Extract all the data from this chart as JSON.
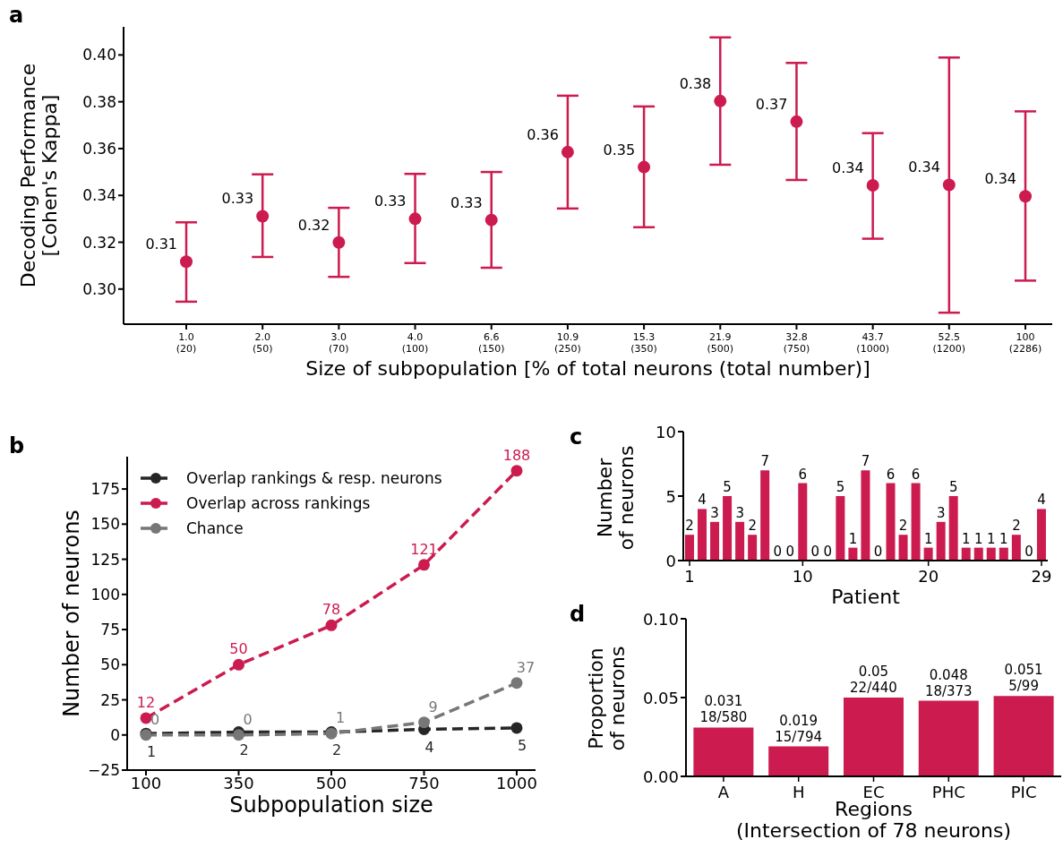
{
  "chart_data": [
    {
      "type": "scatter",
      "title": "a",
      "xlabel": "Size of subpopulation [% of total neurons (total number)]",
      "ylabel": "Decoding Performance\n[Cohen's Kappa]",
      "marker": "circle",
      "color": "#cb1b4f",
      "categories": [
        "1.0\n(20)",
        "2.0\n(50)",
        "3.0\n(70)",
        "4.0\n(100)",
        "6.6\n(150)",
        "10.9\n(250)",
        "15.3\n(350)",
        "21.9\n(500)",
        "32.8\n(750)",
        "43.7\n(1000)",
        "52.5\n(1200)",
        "100\n(2286)"
      ],
      "values": [
        0.3117,
        0.3311,
        0.3199,
        0.33,
        0.3295,
        0.3585,
        0.3521,
        0.3803,
        0.3715,
        0.3443,
        0.3445,
        0.3396
      ],
      "errors": [
        [
          0.2946,
          0.3285
        ],
        [
          0.3137,
          0.349
        ],
        [
          0.3052,
          0.3347
        ],
        [
          0.3111,
          0.3492
        ],
        [
          0.3091,
          0.35
        ],
        [
          0.3344,
          0.3826
        ],
        [
          0.3264,
          0.378
        ],
        [
          0.3531,
          0.4075
        ],
        [
          0.3466,
          0.3966
        ],
        [
          0.3215,
          0.3666
        ],
        [
          0.2899,
          0.3989
        ],
        [
          0.3036,
          0.3759
        ]
      ],
      "value_labels": [
        "0.31",
        "0.33",
        "0.32",
        "0.33",
        "0.33",
        "0.36",
        "0.35",
        "0.38",
        "0.37",
        "0.34",
        "0.34",
        "0.34"
      ],
      "ylim": [
        0.285,
        0.412
      ],
      "yticks": [
        {
          "value": 0.3,
          "label": "0.30"
        },
        {
          "value": 0.32,
          "label": "0.32"
        },
        {
          "value": 0.34,
          "label": "0.34"
        },
        {
          "value": 0.36,
          "label": "0.36"
        },
        {
          "value": 0.38,
          "label": "0.38"
        },
        {
          "value": 0.4,
          "label": "0.40"
        }
      ]
    },
    {
      "type": "line",
      "title": "b",
      "xlabel": "Subpopulation size",
      "ylabel": "Number of neurons",
      "categories": [
        "100",
        "350",
        "500",
        "750",
        "1000"
      ],
      "series": [
        {
          "name": "Overlap rankings & resp. neurons",
          "color": "#262626",
          "values": [
            1,
            2,
            2,
            4,
            5
          ]
        },
        {
          "name": "Overlap across rankings",
          "color": "#cb1b4f",
          "values": [
            12,
            50,
            78,
            121,
            188
          ]
        },
        {
          "name": "Chance",
          "color": "#777777",
          "values": [
            0,
            0,
            1,
            9,
            37
          ]
        }
      ],
      "ylim": [
        -25,
        198
      ],
      "yticks": [
        {
          "value": -25,
          "label": "−25"
        },
        0,
        25,
        50,
        75,
        100,
        125,
        150,
        175
      ],
      "legend": "top left",
      "marker": "circle",
      "line_style": "dashed",
      "data_labels": true
    },
    {
      "type": "bar",
      "title": "c",
      "xlabel": "Patient",
      "ylabel": "Number\nof neurons",
      "color": "#cb1b4f",
      "categories": [
        "1",
        null,
        null,
        null,
        null,
        null,
        null,
        null,
        null,
        "10",
        null,
        null,
        null,
        null,
        null,
        null,
        null,
        null,
        null,
        "20",
        null,
        null,
        null,
        null,
        null,
        null,
        null,
        null,
        "29"
      ],
      "values": [
        2,
        4,
        3,
        5,
        3,
        2,
        7,
        0,
        0,
        6,
        0,
        0,
        5,
        1,
        7,
        0,
        6,
        2,
        6,
        1,
        3,
        5,
        1,
        1,
        1,
        1,
        2,
        0,
        4
      ],
      "ylim": [
        0,
        10
      ],
      "yticks": [
        0,
        5,
        10
      ],
      "data_labels": true
    },
    {
      "type": "bar",
      "title": "d",
      "xlabel": "Regions\n(Intersection of 78 neurons)",
      "ylabel": "Proportion\nof neurons",
      "color": "#cb1b4f",
      "categories": [
        "A",
        "H",
        "EC",
        "PHC",
        "PIC"
      ],
      "values": [
        0.031,
        0.019,
        0.05,
        0.048,
        0.051
      ],
      "value_labels": [
        "0.031\n18/580",
        "0.019\n15/794",
        "0.05\n22/440",
        "0.048\n18/373",
        "0.051\n5/99"
      ],
      "ylim": [
        0,
        0.1
      ],
      "yticks": [
        {
          "value": 0,
          "label": "0.00"
        },
        {
          "value": 0.05,
          "label": "0.05"
        },
        {
          "value": 0.1,
          "label": "0.10"
        }
      ]
    }
  ]
}
